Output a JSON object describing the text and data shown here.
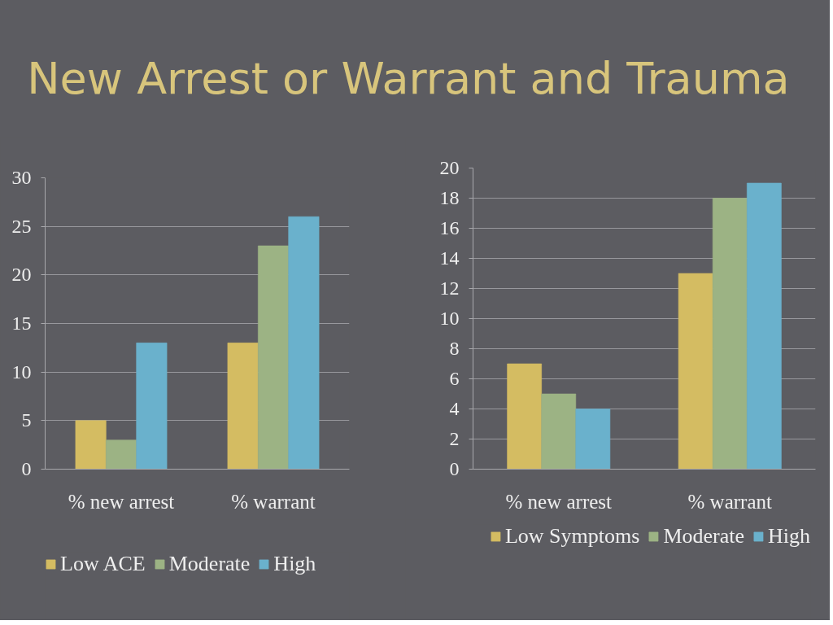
{
  "chart_data": [
    {
      "type": "bar",
      "title": "New Arrest or Warrant  and Trauma",
      "categories": [
        "% new arrest",
        "% warrant"
      ],
      "series": [
        {
          "name": "Low ACE",
          "color": "#d4bc62",
          "values": [
            5,
            13
          ]
        },
        {
          "name": "Moderate",
          "color": "#9cb384",
          "values": [
            3,
            23
          ]
        },
        {
          "name": "High",
          "color": "#6ab1cc",
          "values": [
            13,
            26
          ]
        }
      ],
      "ylim": [
        0,
        30
      ],
      "yticks": [
        0,
        5,
        10,
        15,
        20,
        25,
        30
      ],
      "grid": "y",
      "legend": "bottom left"
    },
    {
      "type": "bar",
      "categories": [
        "% new arrest",
        "% warrant"
      ],
      "series": [
        {
          "name": "Low Symptoms",
          "color": "#d4bc62",
          "values": [
            7,
            13
          ]
        },
        {
          "name": "Moderate",
          "color": "#9cb384",
          "values": [
            5,
            18
          ]
        },
        {
          "name": "High",
          "color": "#6ab1cc",
          "values": [
            4,
            19
          ]
        }
      ],
      "ylim": [
        0,
        20
      ],
      "yticks": [
        0,
        2,
        4,
        6,
        8,
        10,
        12,
        14,
        16,
        18,
        20
      ],
      "grid": "y",
      "legend": "bottom right"
    }
  ]
}
